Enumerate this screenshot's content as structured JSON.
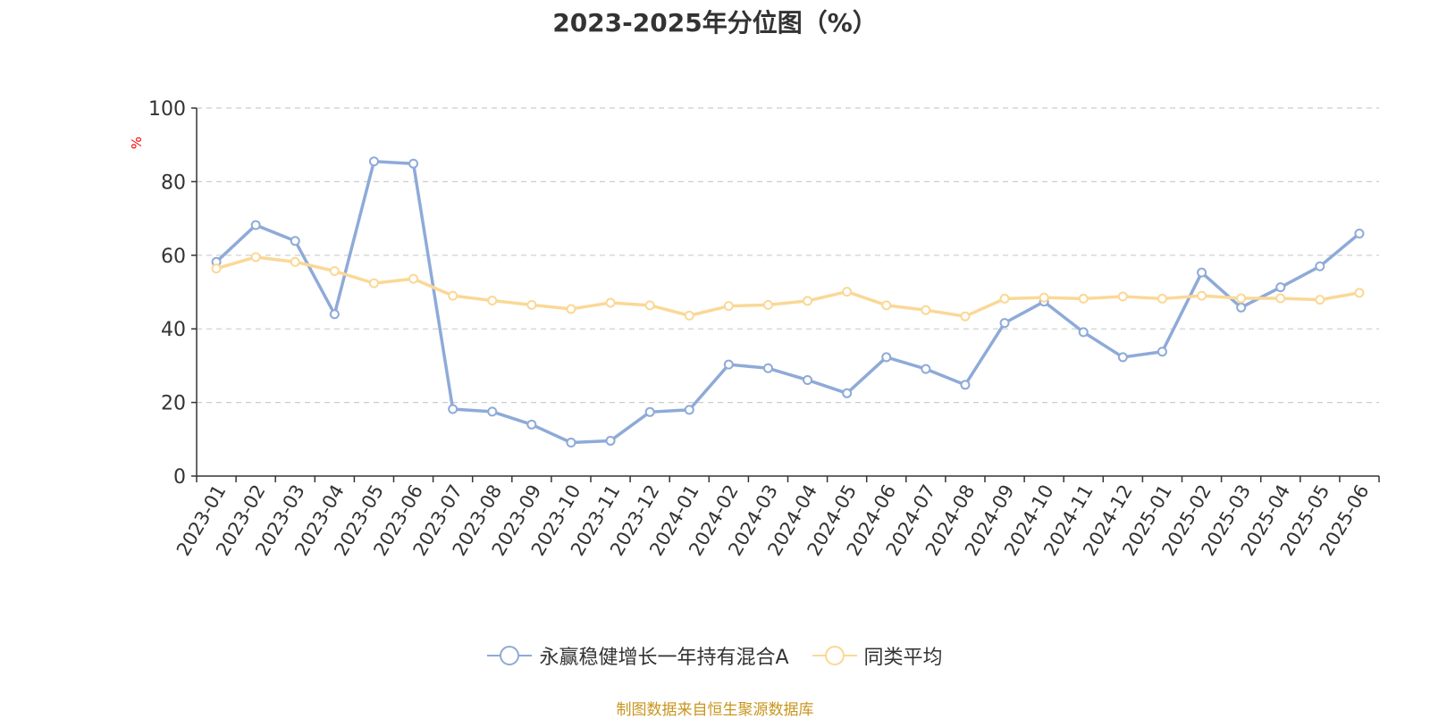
{
  "chart_data": {
    "type": "line",
    "title": "2023-2025年分位图（%）",
    "ylabel": "%",
    "xlabel": "",
    "ylim": [
      0,
      100
    ],
    "yticks": [
      0,
      20,
      40,
      60,
      80,
      100
    ],
    "grid": "horizontal-dashed",
    "legend_position": "bottom-center",
    "x": [
      "2023-01",
      "2023-02",
      "2023-03",
      "2023-04",
      "2023-05",
      "2023-06",
      "2023-07",
      "2023-08",
      "2023-09",
      "2023-10",
      "2023-11",
      "2023-12",
      "2024-01",
      "2024-02",
      "2024-03",
      "2024-04",
      "2024-05",
      "2024-06",
      "2024-07",
      "2024-08",
      "2024-09",
      "2024-10",
      "2024-11",
      "2024-12",
      "2025-01",
      "2025-02",
      "2025-03",
      "2025-04",
      "2025-05",
      "2025-06"
    ],
    "series": [
      {
        "name": "永赢稳健增长一年持有混合A",
        "color": "#8eaad8",
        "values": [
          58.2,
          68.2,
          63.9,
          44.0,
          85.5,
          84.9,
          18.2,
          17.5,
          14.0,
          9.1,
          9.6,
          17.4,
          18.0,
          30.3,
          29.3,
          26.1,
          22.5,
          32.3,
          29.1,
          24.8,
          41.6,
          47.4,
          39.1,
          32.3,
          33.8,
          55.3,
          45.8,
          51.3,
          57.0,
          65.9
        ]
      },
      {
        "name": "同类平均",
        "color": "#fad896",
        "values": [
          56.4,
          59.5,
          58.2,
          55.7,
          52.4,
          53.6,
          49.0,
          47.7,
          46.5,
          45.4,
          47.1,
          46.4,
          43.6,
          46.2,
          46.5,
          47.6,
          50.1,
          46.4,
          45.1,
          43.4,
          48.2,
          48.5,
          48.2,
          48.8,
          48.2,
          49.0,
          48.3,
          48.3,
          47.9,
          49.8
        ]
      }
    ]
  },
  "footer": {
    "source": "制图数据来自恒生聚源数据库"
  }
}
